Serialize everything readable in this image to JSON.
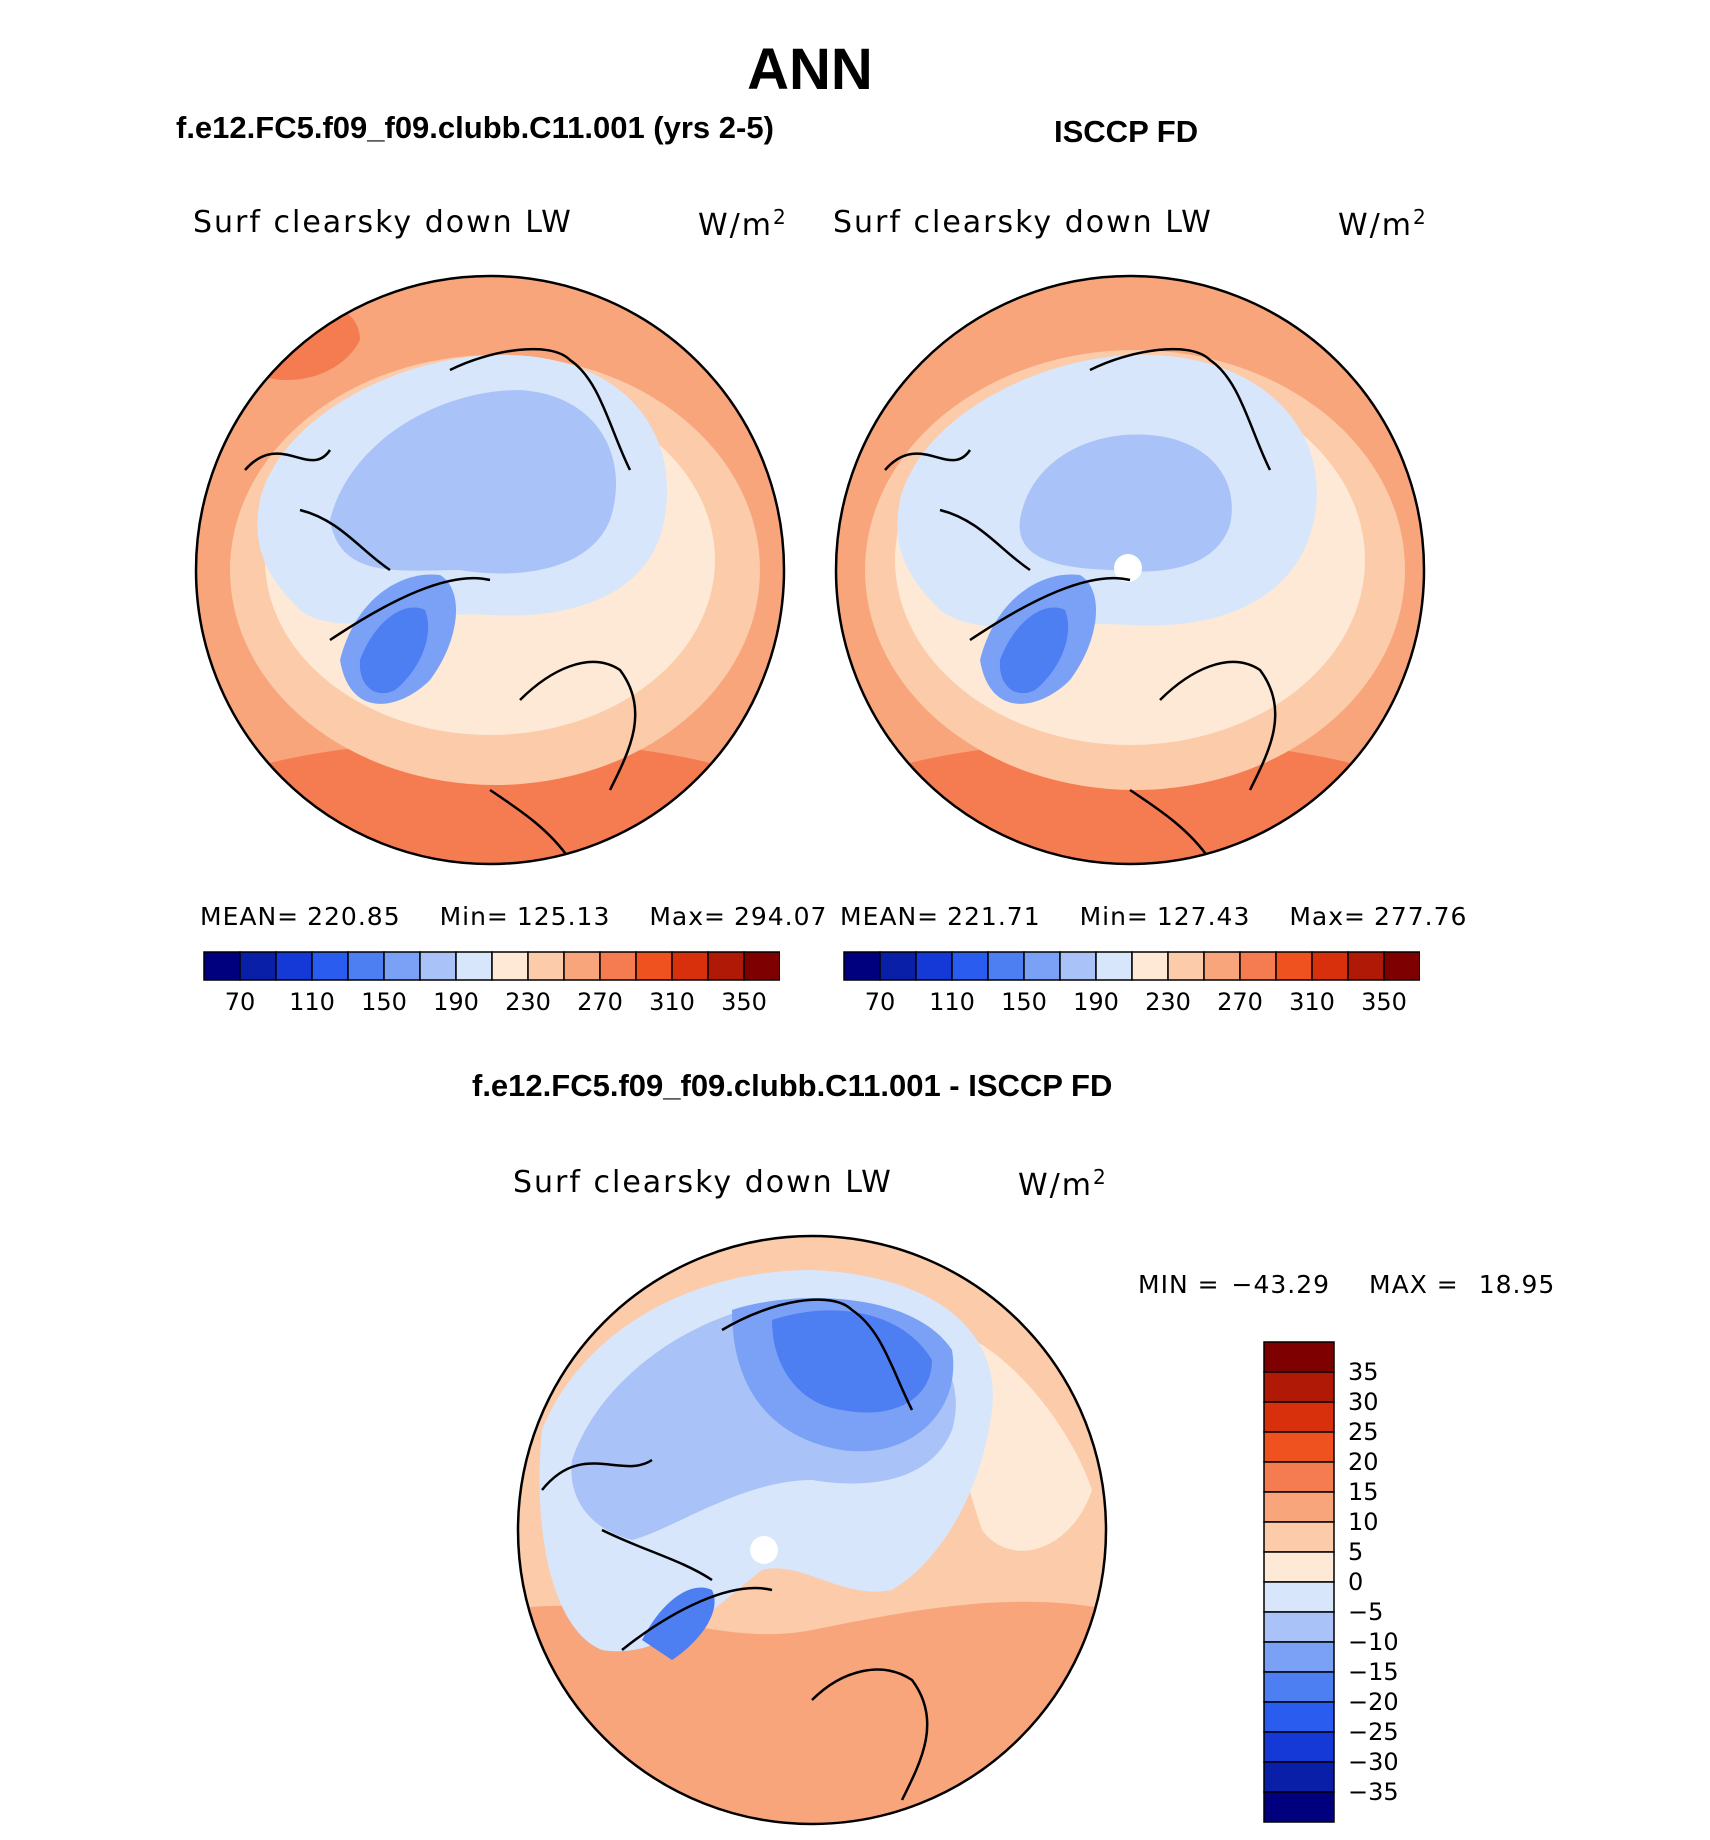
{
  "figure": {
    "title": "ANN",
    "panel1_title": "f.e12.FC5.f09_f09.clubb.C11.001 (yrs 2-5)",
    "panel2_title": "ISCCP FD",
    "panel3_title": "f.e12.FC5.f09_f09.clubb.C11.001 - ISCCP FD"
  },
  "chart_data": [
    {
      "type": "heatmap",
      "projection": "north-polar-stereographic",
      "source": "f.e12.FC5.f09_f09.clubb.C11.001 (yrs 2-5)",
      "variable": "Surf clearsky down LW",
      "units": "W/m",
      "units_sup": "2",
      "stats": {
        "mean_label": "MEAN=",
        "mean": "220.85",
        "min_label": "Min=",
        "min": "125.13",
        "max_label": "Max=",
        "max": "294.07"
      },
      "colorbar": {
        "orientation": "horizontal",
        "levels": [
          70,
          90,
          110,
          130,
          150,
          170,
          190,
          210,
          230,
          250,
          270,
          290,
          310,
          330,
          350
        ],
        "tick_labels": [
          "70",
          "110",
          "150",
          "190",
          "230",
          "270",
          "310",
          "350"
        ],
        "colors": [
          "#00007f",
          "#0a1fa8",
          "#1439d6",
          "#2a5cf0",
          "#4d7ef2",
          "#7aa1f5",
          "#a9c2f7",
          "#d7e6fb",
          "#fde9d6",
          "#fbcbaa",
          "#f8a57c",
          "#f57c50",
          "#f0521f",
          "#d8300c",
          "#b01906",
          "#7f0000"
        ]
      }
    },
    {
      "type": "heatmap",
      "projection": "north-polar-stereographic",
      "source": "ISCCP FD",
      "variable": "Surf clearsky down LW",
      "units": "W/m",
      "units_sup": "2",
      "stats": {
        "mean_label": "MEAN=",
        "mean": "221.71",
        "min_label": "Min=",
        "min": "127.43",
        "max_label": "Max=",
        "max": "277.76"
      },
      "colorbar": {
        "orientation": "horizontal",
        "levels": [
          70,
          90,
          110,
          130,
          150,
          170,
          190,
          210,
          230,
          250,
          270,
          290,
          310,
          330,
          350
        ],
        "tick_labels": [
          "70",
          "110",
          "150",
          "190",
          "230",
          "270",
          "310",
          "350"
        ],
        "colors": [
          "#00007f",
          "#0a1fa8",
          "#1439d6",
          "#2a5cf0",
          "#4d7ef2",
          "#7aa1f5",
          "#a9c2f7",
          "#d7e6fb",
          "#fde9d6",
          "#fbcbaa",
          "#f8a57c",
          "#f57c50",
          "#f0521f",
          "#d8300c",
          "#b01906",
          "#7f0000"
        ]
      }
    },
    {
      "type": "heatmap",
      "projection": "north-polar-stereographic",
      "source": "f.e12.FC5.f09_f09.clubb.C11.001 - ISCCP FD",
      "variable": "Surf clearsky down LW",
      "units": "W/m",
      "units_sup": "2",
      "stats": {
        "min_label": "MIN =",
        "min": "−43.29",
        "max_label": "MAX =",
        "max": "18.95"
      },
      "colorbar": {
        "orientation": "vertical",
        "tick_labels": [
          "35",
          "30",
          "25",
          "20",
          "15",
          "10",
          "5",
          "0",
          "−5",
          "−10",
          "−15",
          "−20",
          "−25",
          "−30",
          "−35"
        ],
        "colors": [
          "#7f0000",
          "#b01906",
          "#d8300c",
          "#f0521f",
          "#f57c50",
          "#f8a57c",
          "#fbcbaa",
          "#fde9d6",
          "#d7e6fb",
          "#a9c2f7",
          "#7aa1f5",
          "#4d7ef2",
          "#2a5cf0",
          "#1439d6",
          "#0a1fa8",
          "#00007f"
        ]
      }
    }
  ]
}
